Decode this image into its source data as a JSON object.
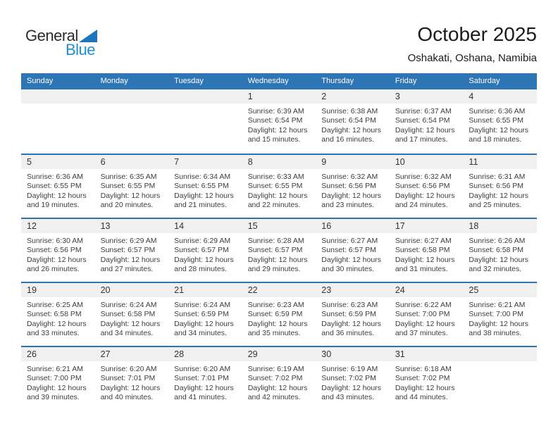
{
  "logo": {
    "general": "General",
    "blue": "Blue"
  },
  "header": {
    "title": "October 2025",
    "subtitle": "Oshakati, Oshana, Namibia"
  },
  "colors": {
    "header_bar": "#2E75B6",
    "week_separator": "#2E74B5",
    "day_number_strip": "#F0F0F0",
    "logo_triangle": "#1B74BC",
    "logo_blue_text": "#1D8FD1"
  },
  "calendar": {
    "day_headers": [
      "Sunday",
      "Monday",
      "Tuesday",
      "Wednesday",
      "Thursday",
      "Friday",
      "Saturday"
    ],
    "labels": {
      "sunrise": "Sunrise:",
      "sunset": "Sunset:",
      "daylight": "Daylight:"
    },
    "weeks": [
      [
        null,
        null,
        null,
        {
          "day": "1",
          "sunrise": "6:39 AM",
          "sunset": "6:54 PM",
          "daylight1": "12 hours",
          "daylight2": "and 15 minutes."
        },
        {
          "day": "2",
          "sunrise": "6:38 AM",
          "sunset": "6:54 PM",
          "daylight1": "12 hours",
          "daylight2": "and 16 minutes."
        },
        {
          "day": "3",
          "sunrise": "6:37 AM",
          "sunset": "6:54 PM",
          "daylight1": "12 hours",
          "daylight2": "and 17 minutes."
        },
        {
          "day": "4",
          "sunrise": "6:36 AM",
          "sunset": "6:55 PM",
          "daylight1": "12 hours",
          "daylight2": "and 18 minutes."
        }
      ],
      [
        {
          "day": "5",
          "sunrise": "6:36 AM",
          "sunset": "6:55 PM",
          "daylight1": "12 hours",
          "daylight2": "and 19 minutes."
        },
        {
          "day": "6",
          "sunrise": "6:35 AM",
          "sunset": "6:55 PM",
          "daylight1": "12 hours",
          "daylight2": "and 20 minutes."
        },
        {
          "day": "7",
          "sunrise": "6:34 AM",
          "sunset": "6:55 PM",
          "daylight1": "12 hours",
          "daylight2": "and 21 minutes."
        },
        {
          "day": "8",
          "sunrise": "6:33 AM",
          "sunset": "6:55 PM",
          "daylight1": "12 hours",
          "daylight2": "and 22 minutes."
        },
        {
          "day": "9",
          "sunrise": "6:32 AM",
          "sunset": "6:56 PM",
          "daylight1": "12 hours",
          "daylight2": "and 23 minutes."
        },
        {
          "day": "10",
          "sunrise": "6:32 AM",
          "sunset": "6:56 PM",
          "daylight1": "12 hours",
          "daylight2": "and 24 minutes."
        },
        {
          "day": "11",
          "sunrise": "6:31 AM",
          "sunset": "6:56 PM",
          "daylight1": "12 hours",
          "daylight2": "and 25 minutes."
        }
      ],
      [
        {
          "day": "12",
          "sunrise": "6:30 AM",
          "sunset": "6:56 PM",
          "daylight1": "12 hours",
          "daylight2": "and 26 minutes."
        },
        {
          "day": "13",
          "sunrise": "6:29 AM",
          "sunset": "6:57 PM",
          "daylight1": "12 hours",
          "daylight2": "and 27 minutes."
        },
        {
          "day": "14",
          "sunrise": "6:29 AM",
          "sunset": "6:57 PM",
          "daylight1": "12 hours",
          "daylight2": "and 28 minutes."
        },
        {
          "day": "15",
          "sunrise": "6:28 AM",
          "sunset": "6:57 PM",
          "daylight1": "12 hours",
          "daylight2": "and 29 minutes."
        },
        {
          "day": "16",
          "sunrise": "6:27 AM",
          "sunset": "6:57 PM",
          "daylight1": "12 hours",
          "daylight2": "and 30 minutes."
        },
        {
          "day": "17",
          "sunrise": "6:27 AM",
          "sunset": "6:58 PM",
          "daylight1": "12 hours",
          "daylight2": "and 31 minutes."
        },
        {
          "day": "18",
          "sunrise": "6:26 AM",
          "sunset": "6:58 PM",
          "daylight1": "12 hours",
          "daylight2": "and 32 minutes."
        }
      ],
      [
        {
          "day": "19",
          "sunrise": "6:25 AM",
          "sunset": "6:58 PM",
          "daylight1": "12 hours",
          "daylight2": "and 33 minutes."
        },
        {
          "day": "20",
          "sunrise": "6:24 AM",
          "sunset": "6:58 PM",
          "daylight1": "12 hours",
          "daylight2": "and 34 minutes."
        },
        {
          "day": "21",
          "sunrise": "6:24 AM",
          "sunset": "6:59 PM",
          "daylight1": "12 hours",
          "daylight2": "and 34 minutes."
        },
        {
          "day": "22",
          "sunrise": "6:23 AM",
          "sunset": "6:59 PM",
          "daylight1": "12 hours",
          "daylight2": "and 35 minutes."
        },
        {
          "day": "23",
          "sunrise": "6:23 AM",
          "sunset": "6:59 PM",
          "daylight1": "12 hours",
          "daylight2": "and 36 minutes."
        },
        {
          "day": "24",
          "sunrise": "6:22 AM",
          "sunset": "7:00 PM",
          "daylight1": "12 hours",
          "daylight2": "and 37 minutes."
        },
        {
          "day": "25",
          "sunrise": "6:21 AM",
          "sunset": "7:00 PM",
          "daylight1": "12 hours",
          "daylight2": "and 38 minutes."
        }
      ],
      [
        {
          "day": "26",
          "sunrise": "6:21 AM",
          "sunset": "7:00 PM",
          "daylight1": "12 hours",
          "daylight2": "and 39 minutes."
        },
        {
          "day": "27",
          "sunrise": "6:20 AM",
          "sunset": "7:01 PM",
          "daylight1": "12 hours",
          "daylight2": "and 40 minutes."
        },
        {
          "day": "28",
          "sunrise": "6:20 AM",
          "sunset": "7:01 PM",
          "daylight1": "12 hours",
          "daylight2": "and 41 minutes."
        },
        {
          "day": "29",
          "sunrise": "6:19 AM",
          "sunset": "7:02 PM",
          "daylight1": "12 hours",
          "daylight2": "and 42 minutes."
        },
        {
          "day": "30",
          "sunrise": "6:19 AM",
          "sunset": "7:02 PM",
          "daylight1": "12 hours",
          "daylight2": "and 43 minutes."
        },
        {
          "day": "31",
          "sunrise": "6:18 AM",
          "sunset": "7:02 PM",
          "daylight1": "12 hours",
          "daylight2": "and 44 minutes."
        },
        null
      ]
    ]
  }
}
